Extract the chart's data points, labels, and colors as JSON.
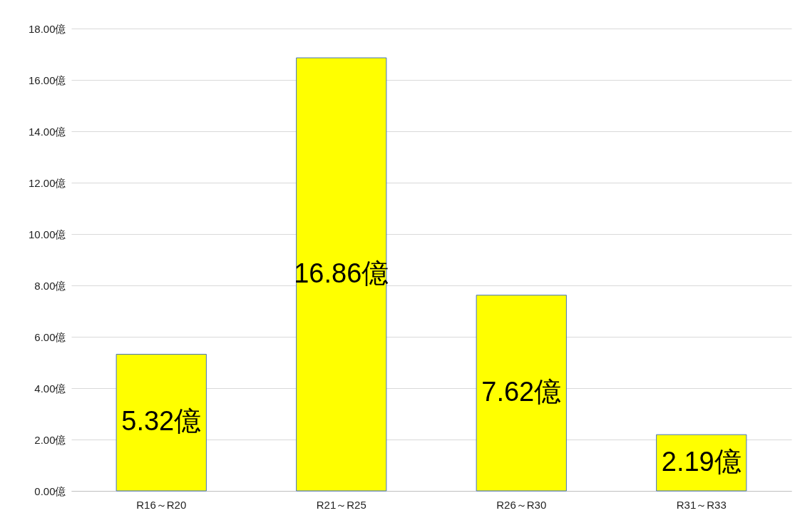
{
  "chart_data": {
    "type": "bar",
    "categories": [
      "R16～R20",
      "R21～R25",
      "R26～R30",
      "R31～R33"
    ],
    "values": [
      5.32,
      16.86,
      7.62,
      2.19
    ],
    "color": "#ffff00",
    "value_labels": [
      "5.32億",
      "16.86億",
      "7.62億",
      "2.19億"
    ],
    "ylim": [
      0,
      18
    ],
    "yticks": [
      {
        "value": 0,
        "label": "0.00億"
      },
      {
        "value": 2,
        "label": "2.00億"
      },
      {
        "value": 4,
        "label": "4.00億"
      },
      {
        "value": 6,
        "label": "6.00億"
      },
      {
        "value": 8,
        "label": "8.00億"
      },
      {
        "value": 10,
        "label": "10.00億"
      },
      {
        "value": 12,
        "label": "12.00億"
      },
      {
        "value": 14,
        "label": "14.00億"
      },
      {
        "value": 16,
        "label": "16.00億"
      },
      {
        "value": 18,
        "label": "18.00億"
      }
    ],
    "grid": "y"
  }
}
